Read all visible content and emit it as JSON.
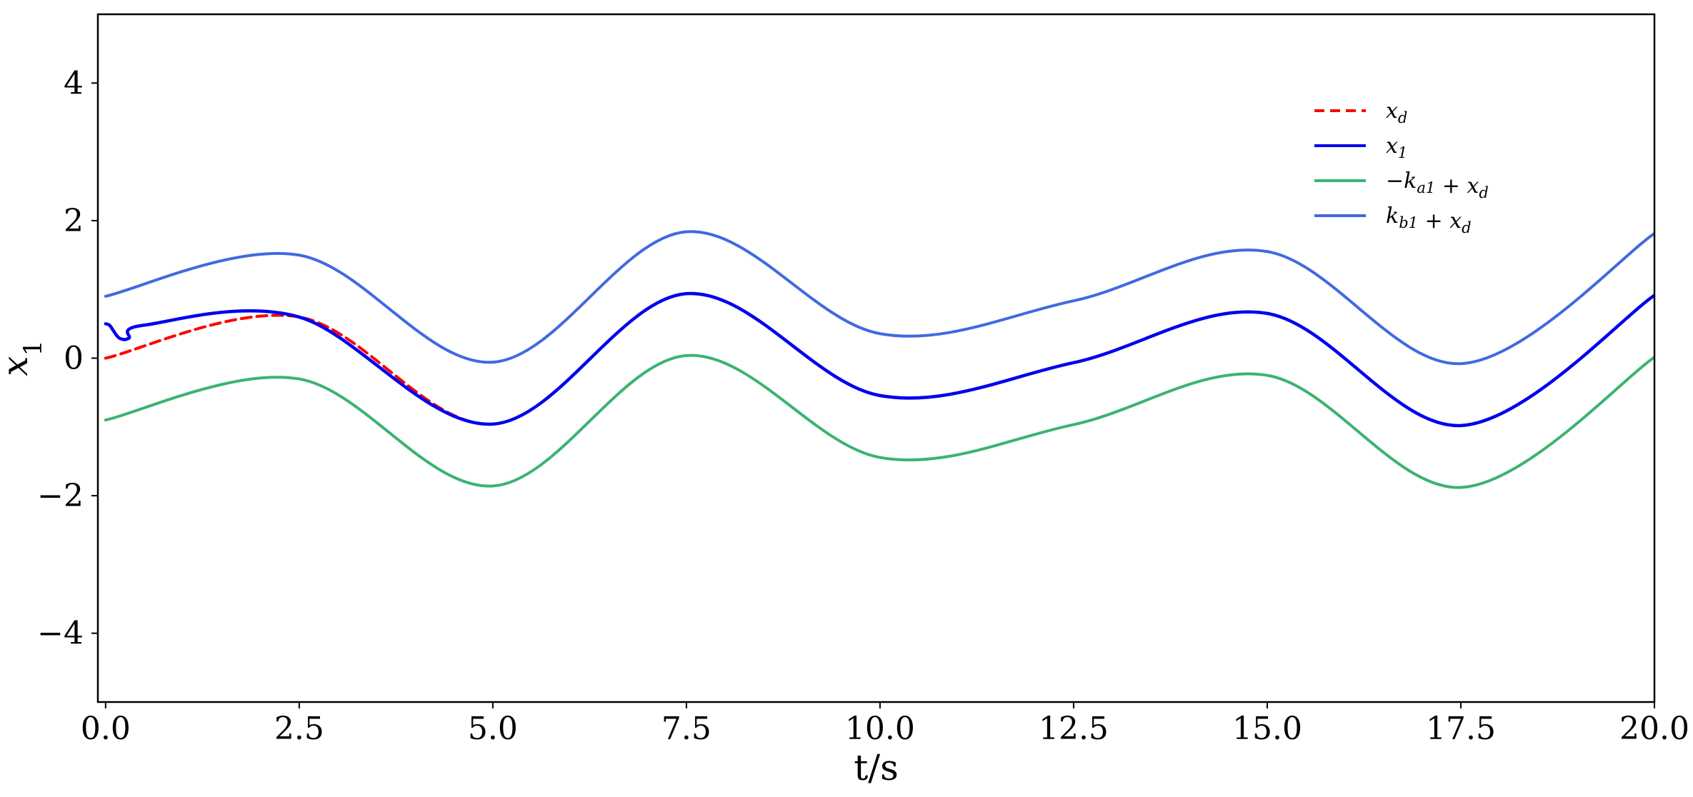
{
  "chart_data": {
    "type": "line",
    "title": "",
    "xlabel": "t/s",
    "ylabel": "x_1",
    "xlim": [
      -0.1,
      20.0
    ],
    "ylim": [
      -5,
      5
    ],
    "grid": false,
    "legend_position": "top-right",
    "x_ticks": [
      "0.0",
      "2.5",
      "5.0",
      "7.5",
      "10.0",
      "12.5",
      "15.0",
      "17.5",
      "20.0"
    ],
    "y_ticks": [
      "−4",
      "−2",
      "0",
      "2",
      "4"
    ],
    "x_tick_values": [
      0,
      2.5,
      5,
      7.5,
      10,
      12.5,
      15,
      17.5,
      20
    ],
    "y_tick_values": [
      -4,
      -2,
      0,
      2,
      4
    ],
    "series": [
      {
        "name": "x_d",
        "color": "#ff0000",
        "style": "dashed",
        "x": [
          0,
          2.5,
          5.0,
          7.5,
          10.0,
          12.5,
          15.0,
          17.5,
          20.0
        ],
        "values": [
          0.0,
          0.598,
          -0.959,
          0.938,
          -0.544,
          -0.066,
          0.65,
          -0.98,
          0.913
        ]
      },
      {
        "name": "x_1",
        "color": "#0000ee",
        "style": "solid",
        "x": [
          0.0,
          0.05,
          0.1,
          0.15,
          0.2,
          0.3,
          0.5,
          2.5,
          5.0,
          7.5,
          10.0,
          12.5,
          15.0,
          17.5,
          20.0
        ],
        "values": [
          0.5,
          0.48,
          0.4,
          0.32,
          0.28,
          0.29,
          0.48,
          0.598,
          -0.959,
          0.938,
          -0.544,
          -0.066,
          0.65,
          -0.98,
          0.913
        ]
      },
      {
        "name": "−k_a1 + x_d",
        "color": "#3cb371",
        "style": "solid",
        "x": [
          0,
          2.5,
          5.0,
          7.5,
          10.0,
          12.5,
          15.0,
          17.5,
          20.0
        ],
        "values": [
          -0.9,
          -0.302,
          -1.859,
          0.038,
          -1.444,
          -0.966,
          -0.25,
          -1.88,
          0.013
        ]
      },
      {
        "name": "k_b1 + x_d",
        "color": "#4169e1",
        "style": "solid",
        "x": [
          0,
          2.5,
          5.0,
          7.5,
          10.0,
          12.5,
          15.0,
          17.5,
          20.0
        ],
        "values": [
          0.9,
          1.498,
          -0.059,
          1.838,
          0.356,
          0.834,
          1.55,
          -0.08,
          1.813
        ]
      }
    ]
  }
}
